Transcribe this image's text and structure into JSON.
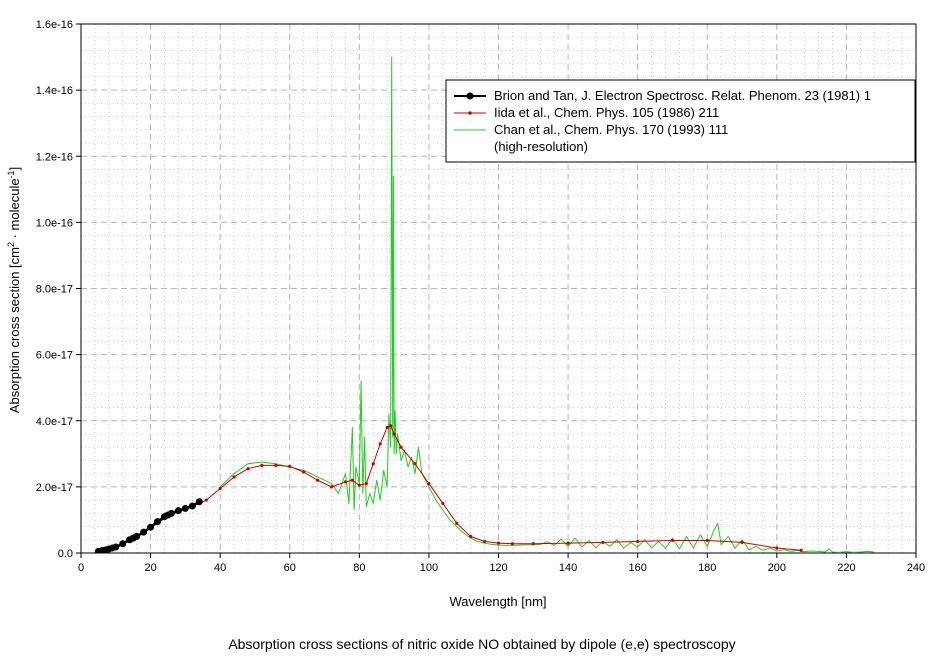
{
  "chart_data": {
    "type": "line",
    "title": "",
    "caption": "Absorption cross sections of nitric oxide NO obtained by dipole (e,e) spectroscopy",
    "xlabel": "Wavelength [nm]",
    "ylabel_prefix": "Absorption cross section [cm",
    "ylabel_sup1": "2",
    "ylabel_mid": " · molecule",
    "ylabel_sup2": "-1",
    "ylabel_suffix": "]",
    "xlim": [
      0,
      240
    ],
    "ylim": [
      0,
      1.6e-16
    ],
    "grid": true,
    "legend_position": "top-right",
    "x_ticks": [
      0,
      20,
      40,
      60,
      80,
      100,
      120,
      140,
      160,
      180,
      200,
      220,
      240
    ],
    "x_tick_labels": [
      "0",
      "20",
      "40",
      "60",
      "80",
      "100",
      "120",
      "140",
      "160",
      "180",
      "200",
      "220",
      "240"
    ],
    "y_ticks": [
      0,
      2e-17,
      4e-17,
      6e-17,
      8e-17,
      1e-16,
      1.2e-16,
      1.4e-16,
      1.6e-16
    ],
    "y_tick_labels": [
      "0.0",
      "2.0e-17",
      "4.0e-17",
      "6.0e-17",
      "8.0e-17",
      "1.0e-16",
      "1.2e-16",
      "1.4e-16",
      "1.6e-16"
    ],
    "series": [
      {
        "name": "Brion and Tan, J. Electron Spectrosc. Relat. Phenom. 23 (1981) 1",
        "color": "#000000",
        "marker": "circle",
        "x": [
          5,
          6,
          7,
          8,
          9,
          10,
          12,
          14,
          15,
          16,
          18,
          20,
          22,
          24,
          25,
          26,
          28,
          30,
          32,
          34
        ],
        "y": [
          5e-19,
          7e-19,
          9e-19,
          1.2e-18,
          1.5e-18,
          1.8e-18,
          2.8e-18,
          4e-18,
          4.5e-18,
          5e-18,
          6.3e-18,
          7.8e-18,
          9.5e-18,
          1.1e-17,
          1.15e-17,
          1.2e-17,
          1.28e-17,
          1.35e-17,
          1.42e-17,
          1.55e-17
        ]
      },
      {
        "name": "Iida et al., Chem. Phys. 105 (1986) 211",
        "color": "#cc0000",
        "marker": "dot",
        "x": [
          5,
          8,
          10,
          14,
          18,
          22,
          25,
          28,
          32,
          36,
          40,
          44,
          48,
          52,
          56,
          60,
          64,
          68,
          72,
          76,
          78,
          80,
          82,
          84,
          86,
          88,
          89,
          90,
          92,
          96,
          100,
          104,
          108,
          112,
          116,
          120,
          124,
          130,
          140,
          150,
          160,
          170,
          180,
          190,
          200,
          207
        ],
        "y": [
          1e-18,
          1.5e-18,
          2e-18,
          4e-18,
          6e-18,
          9e-18,
          1.12e-17,
          1.25e-17,
          1.4e-17,
          1.6e-17,
          1.95e-17,
          2.3e-17,
          2.55e-17,
          2.65e-17,
          2.65e-17,
          2.62e-17,
          2.45e-17,
          2.2e-17,
          2e-17,
          2.15e-17,
          2.2e-17,
          2.05e-17,
          2.1e-17,
          2.7e-17,
          3.3e-17,
          3.8e-17,
          3.85e-17,
          3.6e-17,
          3.2e-17,
          2.7e-17,
          2.1e-17,
          1.5e-17,
          9e-18,
          5e-18,
          3.5e-18,
          3e-18,
          2.8e-18,
          2.8e-18,
          3e-18,
          3.2e-18,
          3.5e-18,
          3.8e-18,
          3.8e-18,
          3.2e-18,
          1.5e-18,
          8e-19
        ]
      },
      {
        "name": "Chan et al., Chem. Phys. 170 (1993) 111",
        "name_line2": "(high-resolution)",
        "color": "#22cc22",
        "marker": "none",
        "x": [
          40,
          44,
          48,
          52,
          56,
          60,
          64,
          68,
          72,
          74,
          76,
          77,
          78,
          78.5,
          79,
          80,
          80.5,
          81,
          81.5,
          82,
          83,
          84,
          85,
          86,
          87,
          88,
          88.5,
          89,
          89.3,
          89.6,
          89.8,
          90,
          90.3,
          90.6,
          91,
          92,
          93,
          94,
          95,
          96,
          97,
          98,
          100,
          102,
          104,
          106,
          108,
          110,
          112,
          114,
          116,
          118,
          120,
          122,
          124,
          126,
          128,
          130,
          132,
          134,
          136,
          138,
          140,
          142,
          144,
          146,
          148,
          150,
          152,
          154,
          156,
          158,
          160,
          162,
          164,
          166,
          168,
          170,
          172,
          174,
          176,
          178,
          180,
          182,
          183,
          184,
          186,
          188,
          190,
          192,
          194,
          196,
          198,
          200,
          202,
          204,
          206,
          208,
          210,
          212,
          214,
          215,
          216,
          218,
          220,
          222,
          224,
          226,
          228
        ],
        "y": [
          2e-17,
          2.4e-17,
          2.7e-17,
          2.75e-17,
          2.7e-17,
          2.6e-17,
          2.5e-17,
          2.3e-17,
          2.1e-17,
          1.8e-17,
          2.4e-17,
          1.5e-17,
          3.8e-17,
          1.3e-17,
          2.6e-17,
          2.1e-17,
          5.2e-17,
          1.8e-17,
          3.5e-17,
          1.4e-17,
          1.8e-17,
          1.5e-17,
          2.2e-17,
          1.6e-17,
          2.5e-17,
          2e-17,
          4.2e-17,
          3.2e-17,
          1.5e-16,
          3.5e-17,
          1.14e-16,
          3e-17,
          4.3e-17,
          3e-17,
          3.6e-17,
          2.8e-17,
          3.1e-17,
          2.6e-17,
          2.9e-17,
          2.4e-17,
          3.2e-17,
          2.4e-17,
          2e-17,
          1.6e-17,
          1.3e-17,
          1e-17,
          8e-18,
          6e-18,
          4.5e-18,
          3.5e-18,
          3e-18,
          2.6e-18,
          2.4e-18,
          2.3e-18,
          2.3e-18,
          2.4e-18,
          2.5e-18,
          2.5e-18,
          2.6e-18,
          3.4e-18,
          2.3e-18,
          4.2e-18,
          2e-18,
          4.5e-18,
          1.8e-18,
          3.8e-18,
          1.6e-18,
          3.5e-18,
          2e-18,
          4e-18,
          1.5e-18,
          3.2e-18,
          1.8e-18,
          4e-18,
          1.6e-18,
          3.5e-18,
          1.4e-18,
          4.5e-18,
          1.2e-18,
          5e-18,
          1.5e-18,
          5.5e-18,
          2e-18,
          7e-18,
          9e-18,
          2.5e-18,
          5e-18,
          1.5e-18,
          4e-18,
          1e-18,
          2e-18,
          8e-19,
          1.5e-18,
          6e-19,
          1e-18,
          5e-19,
          8e-19,
          4e-19,
          6e-19,
          5e-19,
          3e-19,
          1.2e-18,
          3e-19,
          2e-19,
          4e-19,
          2e-19,
          3e-19,
          5e-19,
          3e-19
        ]
      }
    ]
  }
}
